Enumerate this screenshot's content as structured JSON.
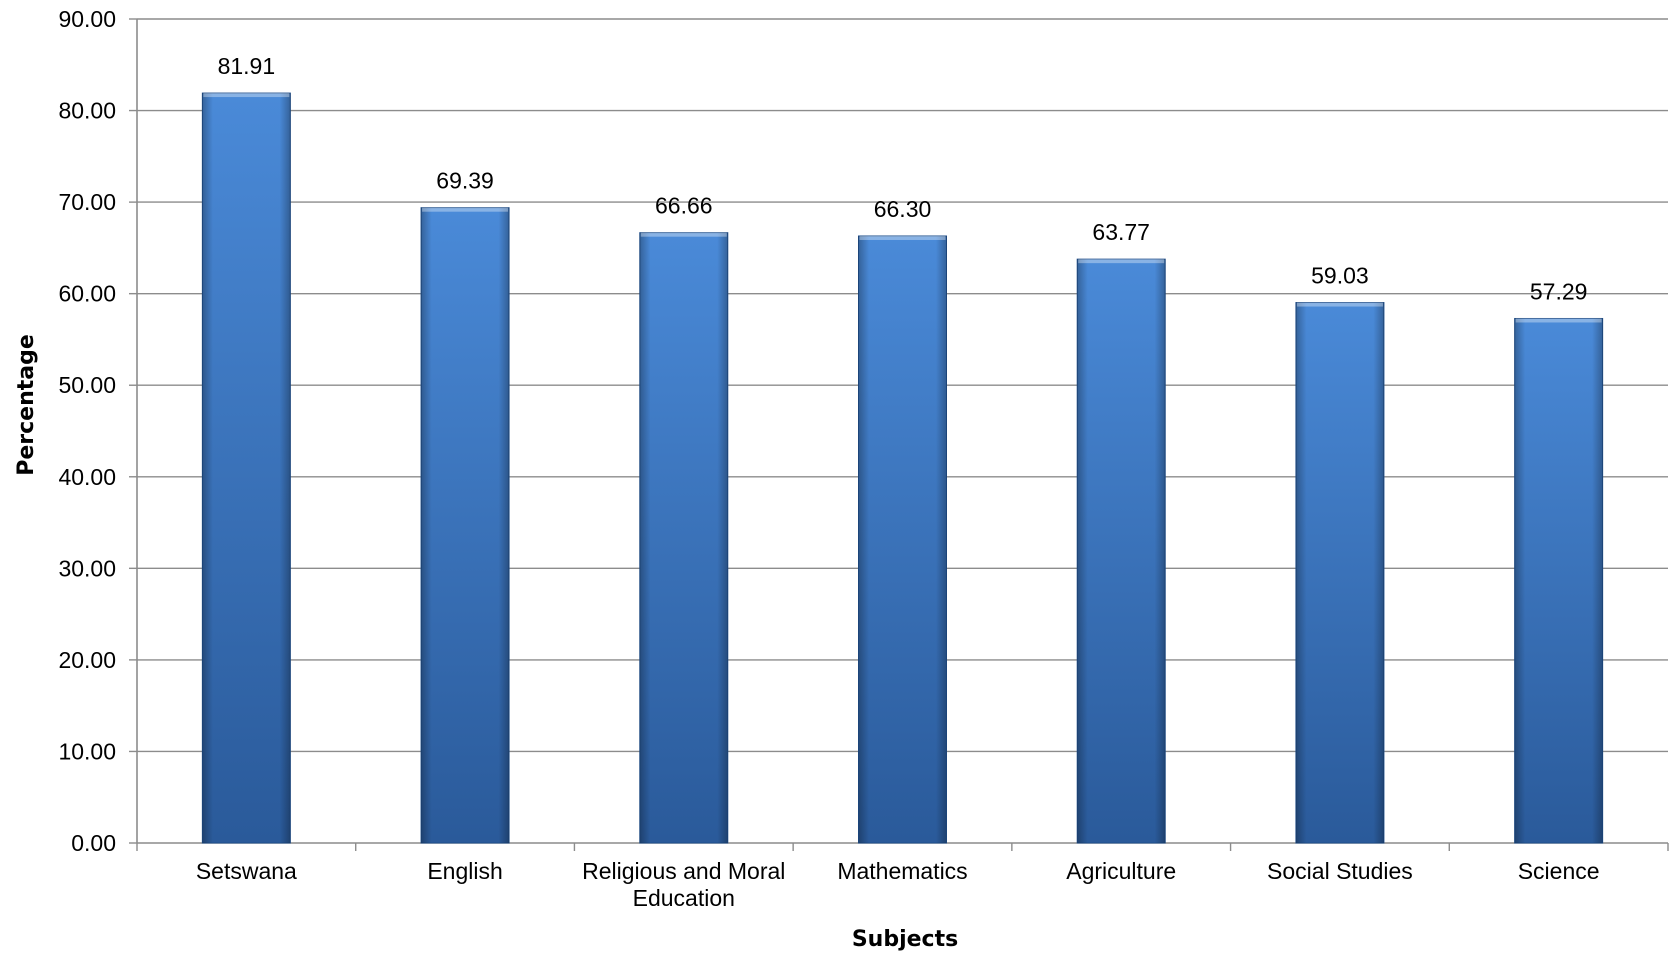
{
  "chart_data": {
    "type": "bar",
    "title": "",
    "xlabel": "Subjects",
    "ylabel": "Percentage",
    "categories": [
      [
        "Setswana"
      ],
      [
        "English"
      ],
      [
        "Religious and Moral",
        "Education"
      ],
      [
        "Mathematics"
      ],
      [
        "Agriculture"
      ],
      [
        "Social Studies"
      ],
      [
        "Science"
      ]
    ],
    "values": [
      81.91,
      69.39,
      66.66,
      66.3,
      63.77,
      59.03,
      57.29
    ],
    "value_labels": [
      "81.91",
      "69.39",
      "66.66",
      "66.30",
      "63.77",
      "59.03",
      "57.29"
    ],
    "ylim": [
      0,
      90
    ],
    "yticks": [
      0,
      10,
      20,
      30,
      40,
      50,
      60,
      70,
      80,
      90
    ],
    "ytick_labels": [
      "0.00",
      "10.00",
      "20.00",
      "30.00",
      "40.00",
      "50.00",
      "60.00",
      "70.00",
      "80.00",
      "90.00"
    ],
    "grid": true,
    "legend": "none",
    "colors": {
      "bar_light": "#4a8ad8",
      "bar_mid": "#3c76c2",
      "bar_dark": "#2a5a9a",
      "bar_edge": "#1f4f8c",
      "grid": "#8c8c8c",
      "axis": "#8c8c8c"
    }
  }
}
